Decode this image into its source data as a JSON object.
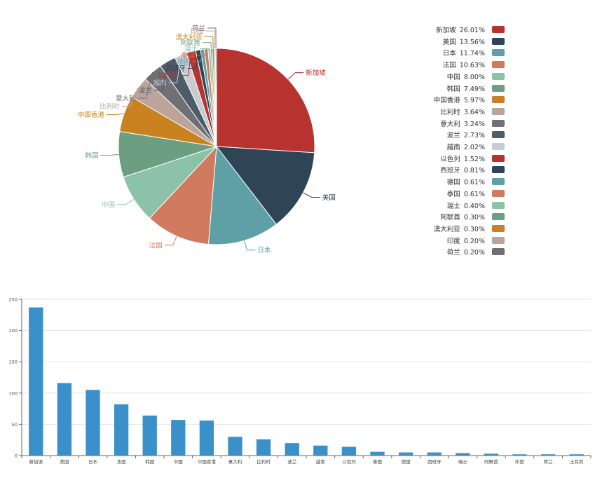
{
  "chart_data": [
    {
      "type": "pie",
      "slices": [
        {
          "label": "新加坡",
          "percent": 26.01,
          "color": "#b83230"
        },
        {
          "label": "美国",
          "percent": 13.56,
          "color": "#2f4454"
        },
        {
          "label": "日本",
          "percent": 11.74,
          "color": "#5fa0a6"
        },
        {
          "label": "法国",
          "percent": 10.63,
          "color": "#d07b5f"
        },
        {
          "label": "中国",
          "percent": 8.0,
          "color": "#8cc3a8"
        },
        {
          "label": "韩国",
          "percent": 7.49,
          "color": "#6e9e82"
        },
        {
          "label": "中国香港",
          "percent": 5.97,
          "color": "#c8821f"
        },
        {
          "label": "比利时",
          "percent": 3.64,
          "color": "#bba49a"
        },
        {
          "label": "意大利",
          "percent": 3.24,
          "color": "#6f6f74"
        },
        {
          "label": "波兰",
          "percent": 2.73,
          "color": "#4c5c68"
        },
        {
          "label": "越南",
          "percent": 2.02,
          "color": "#c6ccd2"
        },
        {
          "label": "以色列",
          "percent": 1.52,
          "color": "#b83230"
        },
        {
          "label": "西班牙",
          "percent": 0.81,
          "color": "#2f4454"
        },
        {
          "label": "德国",
          "percent": 0.61,
          "color": "#5fa0a6"
        },
        {
          "label": "泰国",
          "percent": 0.61,
          "color": "#d07b5f"
        },
        {
          "label": "瑞士",
          "percent": 0.4,
          "color": "#8cc3a8"
        },
        {
          "label": "阿联酋",
          "percent": 0.3,
          "color": "#6e9e82"
        },
        {
          "label": "澳大利亚",
          "percent": 0.3,
          "color": "#c8821f"
        },
        {
          "label": "印度",
          "percent": 0.2,
          "color": "#bba49a"
        },
        {
          "label": "荷兰",
          "percent": 0.2,
          "color": "#6f6f74"
        }
      ],
      "legend_position": "right"
    },
    {
      "type": "bar",
      "categories": [
        "新加坡",
        "美国",
        "日本",
        "法国",
        "韩国",
        "中国",
        "中国香港",
        "意大利",
        "比利时",
        "波兰",
        "越南",
        "以色列",
        "泰国",
        "德国",
        "西班牙",
        "瑞士",
        "阿联酋",
        "印度",
        "荷兰",
        "土耳其"
      ],
      "values": [
        237,
        116,
        105,
        82,
        64,
        57,
        56,
        30,
        26,
        20,
        16,
        14,
        6,
        5,
        5,
        4,
        3,
        2,
        2,
        2
      ],
      "ylim": [
        0,
        250
      ],
      "yticks": [
        0,
        50,
        100,
        150,
        200,
        250
      ],
      "grid": true,
      "bar_color": "#3a90c8"
    }
  ]
}
